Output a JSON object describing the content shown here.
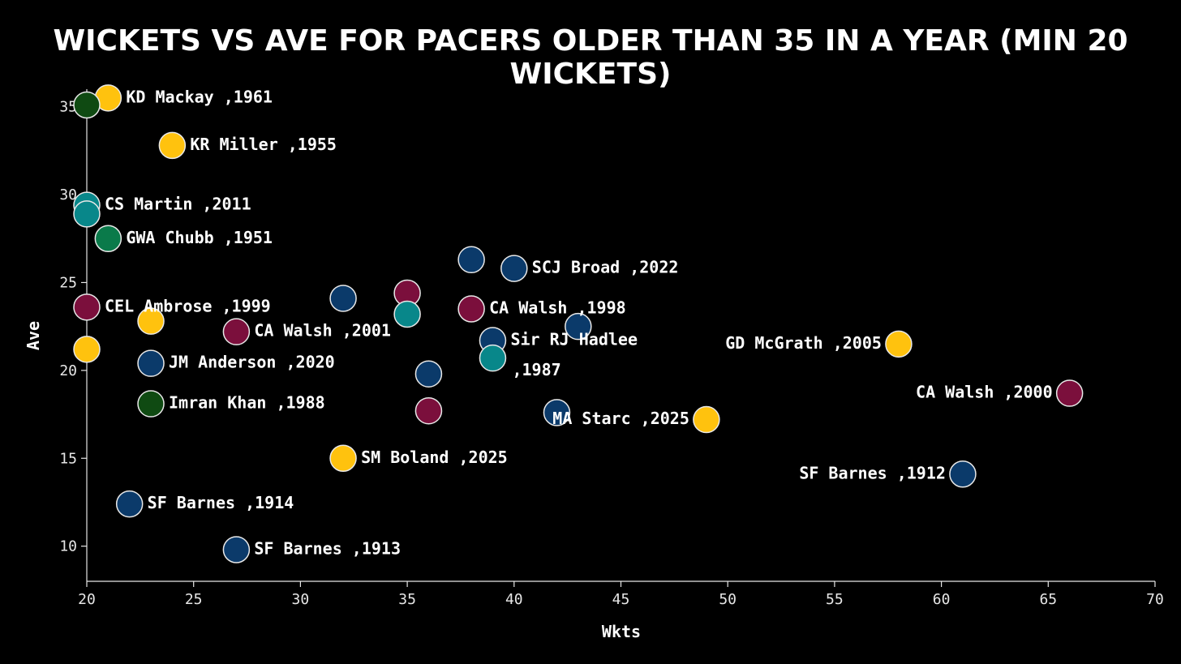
{
  "chart_data": {
    "type": "scatter",
    "title": "WICKETS VS AVE FOR PACERS OLDER THAN 35 IN A YEAR (MIN 20 WICKETS)",
    "xlabel": "Wkts",
    "ylabel": "Ave",
    "xlim": [
      20,
      70
    ],
    "ylim": [
      8,
      36
    ],
    "xticks": [
      "20",
      "25",
      "30",
      "35",
      "40",
      "45",
      "50",
      "55",
      "60",
      "65",
      "70"
    ],
    "yticks": [
      "10",
      "15",
      "20",
      "25",
      "30",
      "35"
    ],
    "colors": {
      "yellow": "#ffc20e",
      "navy": "#0b3a6a",
      "maroon": "#7b0f3c",
      "teal": "#08878a",
      "green": "#0a7a4a",
      "darkgreen": "#0f4a12"
    },
    "points": [
      {
        "x": 21,
        "y": 35.5,
        "color": "yellow",
        "label": "KD Mackay ,1961",
        "pos": "right"
      },
      {
        "x": 20,
        "y": 35.1,
        "color": "darkgreen",
        "label": "",
        "pos": "right"
      },
      {
        "x": 24,
        "y": 32.8,
        "color": "yellow",
        "label": "KR Miller ,1955",
        "pos": "right"
      },
      {
        "x": 20,
        "y": 29.4,
        "color": "teal",
        "label": "CS Martin ,2011",
        "pos": "right"
      },
      {
        "x": 20,
        "y": 28.9,
        "color": "teal",
        "label": "",
        "pos": "right"
      },
      {
        "x": 21,
        "y": 27.5,
        "color": "green",
        "label": "GWA Chubb ,1951",
        "pos": "right"
      },
      {
        "x": 38,
        "y": 26.3,
        "color": "navy",
        "label": "",
        "pos": "right"
      },
      {
        "x": 40,
        "y": 25.8,
        "color": "navy",
        "label": "SCJ Broad ,2022",
        "pos": "right"
      },
      {
        "x": 35,
        "y": 24.4,
        "color": "maroon",
        "label": "",
        "pos": "right"
      },
      {
        "x": 32,
        "y": 24.1,
        "color": "navy",
        "label": "",
        "pos": "right"
      },
      {
        "x": 20,
        "y": 23.6,
        "color": "maroon",
        "label": "CEL Ambrose ,1999",
        "pos": "right"
      },
      {
        "x": 38,
        "y": 23.5,
        "color": "maroon",
        "label": "CA Walsh ,1998",
        "pos": "right"
      },
      {
        "x": 35,
        "y": 23.2,
        "color": "teal",
        "label": "",
        "pos": "right"
      },
      {
        "x": 23,
        "y": 22.8,
        "color": "yellow",
        "label": "",
        "pos": "right"
      },
      {
        "x": 43,
        "y": 22.5,
        "color": "navy",
        "label": "",
        "pos": "right"
      },
      {
        "x": 27,
        "y": 22.2,
        "color": "maroon",
        "label": "CA Walsh ,2001",
        "pos": "right"
      },
      {
        "x": 39,
        "y": 21.7,
        "color": "navy",
        "label": "Sir RJ Hadlee",
        "pos": "right"
      },
      {
        "x": 58,
        "y": 21.5,
        "color": "yellow",
        "label": "GD McGrath ,2005",
        "pos": "left"
      },
      {
        "x": 20,
        "y": 21.2,
        "color": "yellow",
        "label": "",
        "pos": "right"
      },
      {
        "x": 39,
        "y": 20.7,
        "color": "teal",
        "label": ",1987",
        "pos": "right-low"
      },
      {
        "x": 23,
        "y": 20.4,
        "color": "navy",
        "label": "JM Anderson ,2020",
        "pos": "right"
      },
      {
        "x": 36,
        "y": 19.8,
        "color": "navy",
        "label": "",
        "pos": "right"
      },
      {
        "x": 66,
        "y": 18.7,
        "color": "maroon",
        "label": "CA Walsh ,2000",
        "pos": "left"
      },
      {
        "x": 23,
        "y": 18.1,
        "color": "darkgreen",
        "label": "Imran Khan ,1988",
        "pos": "right"
      },
      {
        "x": 36,
        "y": 17.7,
        "color": "maroon",
        "label": "",
        "pos": "right"
      },
      {
        "x": 42,
        "y": 17.6,
        "color": "navy",
        "label": "",
        "pos": "right"
      },
      {
        "x": 49,
        "y": 17.2,
        "color": "yellow",
        "label": "MA Starc ,2025",
        "pos": "left"
      },
      {
        "x": 32,
        "y": 15.0,
        "color": "yellow",
        "label": "SM Boland ,2025",
        "pos": "right"
      },
      {
        "x": 61,
        "y": 14.1,
        "color": "navy",
        "label": "SF Barnes ,1912",
        "pos": "left"
      },
      {
        "x": 22,
        "y": 12.4,
        "color": "navy",
        "label": "SF Barnes ,1914",
        "pos": "right"
      },
      {
        "x": 27,
        "y": 9.8,
        "color": "navy",
        "label": "SF Barnes ,1913",
        "pos": "right"
      }
    ]
  }
}
